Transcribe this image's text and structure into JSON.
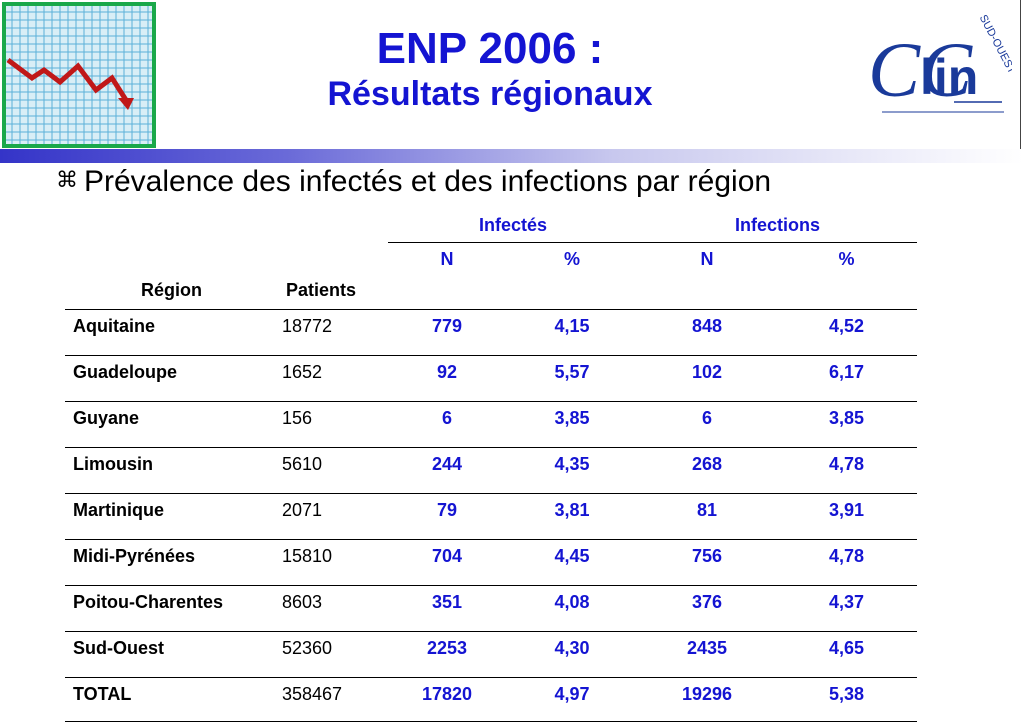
{
  "header": {
    "title": "ENP 2006 :",
    "subtitle": "Résultats régionaux",
    "bullet_icon": "command-key-icon"
  },
  "logo": {
    "text_main": "CC",
    "text_lin": "lin",
    "text_ring": "SUD-OUEST"
  },
  "section_heading": "Prévalence des infectés et des infections par région",
  "colors": {
    "accent": "#1414d2",
    "bar_start": "#3434c8"
  },
  "table": {
    "group_headers": [
      "Infectés",
      "Infections"
    ],
    "col_headers": {
      "region": "Région",
      "patients": "Patients",
      "infectes_n": "N",
      "infectes_pct": "%",
      "infections_n": "N",
      "infections_pct": "%"
    },
    "rows": [
      {
        "region": "Aquitaine",
        "patients": "18772",
        "inf_n": "779",
        "inf_pct": "4,15",
        "ion_n": "848",
        "ion_pct": "4,52"
      },
      {
        "region": "Guadeloupe",
        "patients": "1652",
        "inf_n": "92",
        "inf_pct": "5,57",
        "ion_n": "102",
        "ion_pct": "6,17"
      },
      {
        "region": "Guyane",
        "patients": "156",
        "inf_n": "6",
        "inf_pct": "3,85",
        "ion_n": "6",
        "ion_pct": "3,85"
      },
      {
        "region": "Limousin",
        "patients": "5610",
        "inf_n": "244",
        "inf_pct": "4,35",
        "ion_n": "268",
        "ion_pct": "4,78"
      },
      {
        "region": "Martinique",
        "patients": "2071",
        "inf_n": "79",
        "inf_pct": "3,81",
        "ion_n": "81",
        "ion_pct": "3,91"
      },
      {
        "region": "Midi-Pyrénées",
        "patients": "15810",
        "inf_n": "704",
        "inf_pct": "4,45",
        "ion_n": "756",
        "ion_pct": "4,78"
      },
      {
        "region": "Poitou-Charentes",
        "patients": "8603",
        "inf_n": "351",
        "inf_pct": "4,08",
        "ion_n": "376",
        "ion_pct": "4,37"
      },
      {
        "region": "Sud-Ouest",
        "patients": "52360",
        "inf_n": "2253",
        "inf_pct": "4,30",
        "ion_n": "2435",
        "ion_pct": "4,65"
      },
      {
        "region": "TOTAL",
        "patients": "358467",
        "inf_n": "17820",
        "inf_pct": "4,97",
        "ion_n": "19296",
        "ion_pct": "5,38"
      }
    ]
  }
}
